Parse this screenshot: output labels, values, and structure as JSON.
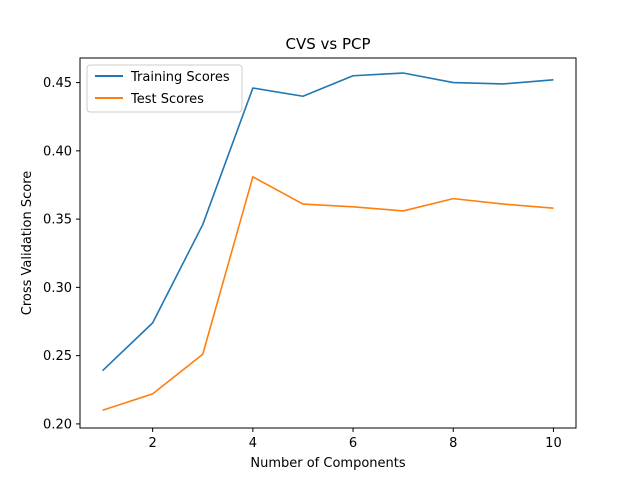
{
  "chart_data": {
    "type": "line",
    "title": "CVS vs PCP",
    "xlabel": "Number of Components",
    "ylabel": "Cross Validation Score",
    "x": [
      1,
      2,
      3,
      4,
      5,
      6,
      7,
      8,
      9,
      10
    ],
    "xlim": [
      0.55,
      10.45
    ],
    "ylim": [
      0.197,
      0.468
    ],
    "xticks": [
      2,
      4,
      6,
      8,
      10
    ],
    "xtick_labels": [
      "2",
      "4",
      "6",
      "8",
      "10"
    ],
    "yticks": [
      0.2,
      0.25,
      0.3,
      0.35,
      0.4,
      0.45
    ],
    "ytick_labels": [
      "0.20",
      "0.25",
      "0.30",
      "0.35",
      "0.40",
      "0.45"
    ],
    "grid": false,
    "legend_position": "top-left",
    "series": [
      {
        "name": "Training Scores",
        "color": "#1f77b4",
        "values": [
          0.239,
          0.274,
          0.346,
          0.446,
          0.44,
          0.455,
          0.457,
          0.45,
          0.449,
          0.452
        ]
      },
      {
        "name": "Test Scores",
        "color": "#ff7f0e",
        "values": [
          0.21,
          0.222,
          0.251,
          0.381,
          0.361,
          0.359,
          0.356,
          0.365,
          0.361,
          0.358
        ]
      }
    ]
  }
}
